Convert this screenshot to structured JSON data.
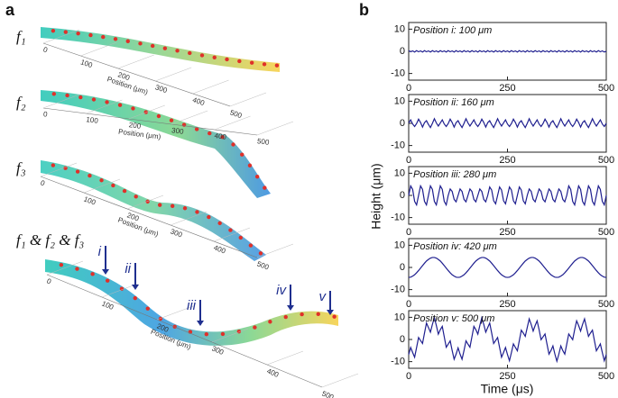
{
  "panel_a": {
    "label": "a",
    "surfaces": [
      {
        "label": "f₁"
      },
      {
        "label": "f₂"
      },
      {
        "label": "f₃"
      },
      {
        "label": "f₁ & f₂ & f₃"
      }
    ],
    "axis_title": "Position (μm)",
    "ticks": [
      0,
      100,
      200,
      300,
      400,
      500
    ],
    "markers": [
      "i",
      "ii",
      "iii",
      "iv",
      "v"
    ]
  },
  "chart_data": {
    "type": "line",
    "label": "b",
    "xlabel": "Time (μs)",
    "ylabel": "Height (μm)",
    "xlim": [
      0,
      500
    ],
    "xticks": [
      0,
      250,
      500
    ],
    "ylim": [
      -13,
      13
    ],
    "yticks": [
      -10,
      0,
      10
    ],
    "color": "#1f1f8f",
    "x": [
      0,
      5,
      10,
      15,
      20,
      25,
      30,
      35,
      40,
      45,
      50,
      55,
      60,
      65,
      70,
      75,
      80,
      85,
      90,
      95,
      100,
      105,
      110,
      115,
      120,
      125,
      130,
      135,
      140,
      145,
      150,
      155,
      160,
      165,
      170,
      175,
      180,
      185,
      190,
      195,
      200,
      205,
      210,
      215,
      220,
      225,
      230,
      235,
      240,
      245,
      250,
      255,
      260,
      265,
      270,
      275,
      280,
      285,
      290,
      295,
      300,
      305,
      310,
      315,
      320,
      325,
      330,
      335,
      340,
      345,
      350,
      355,
      360,
      365,
      370,
      375,
      380,
      385,
      390,
      395,
      400,
      405,
      410,
      415,
      420,
      425,
      430,
      435,
      440,
      445,
      450,
      455,
      460,
      465,
      470,
      475,
      480,
      485,
      490,
      495,
      500
    ],
    "series": [
      {
        "name": "Position i: 100 μm",
        "values": [
          0.3,
          -0.2,
          0.2,
          -0.3,
          0.3,
          -0.2,
          0.2,
          -0.3,
          0.3,
          -0.2,
          0.2,
          -0.3,
          0.3,
          -0.2,
          0.2,
          -0.3,
          0.3,
          -0.2,
          0.2,
          -0.3,
          0.3,
          -0.2,
          0.2,
          -0.3,
          0.3,
          -0.2,
          0.2,
          -0.3,
          0.3,
          -0.2,
          0.2,
          -0.3,
          0.3,
          -0.2,
          0.2,
          -0.3,
          0.3,
          -0.2,
          0.2,
          -0.3,
          0.3,
          -0.2,
          0.2,
          -0.3,
          0.3,
          -0.2,
          0.2,
          -0.3,
          0.3,
          -0.2,
          0.2,
          -0.3,
          0.3,
          -0.2,
          0.2,
          -0.3,
          0.3,
          -0.2,
          0.2,
          -0.3,
          0.3,
          -0.2,
          0.2,
          -0.3,
          0.3,
          -0.2,
          0.2,
          -0.3,
          0.3,
          -0.2,
          0.2,
          -0.3,
          0.3,
          -0.2,
          0.2,
          -0.3,
          0.3,
          -0.2,
          0.2,
          -0.3,
          0.3,
          -0.2,
          0.2,
          -0.3,
          0.3,
          -0.2,
          0.2,
          -0.3,
          0.3,
          -0.2,
          0.2,
          -0.3,
          0.3,
          -0.2,
          0.2,
          -0.3,
          0.3,
          -0.2,
          0.2,
          -0.3,
          0
        ]
      },
      {
        "name": "Position ii: 160 μm",
        "values": [
          0.2,
          1.6,
          -0.3,
          -1.4,
          -0.1,
          1.9,
          0.4,
          -1.7,
          0.3,
          1.2,
          -0.5,
          -1.9,
          0,
          2.1,
          0.2,
          -1.2,
          0.2,
          1.6,
          -0.3,
          -1.4,
          -0.1,
          1.9,
          0.4,
          -1.7,
          0.3,
          1.2,
          -0.5,
          -1.9,
          0,
          2.1,
          0.2,
          -1.2,
          0.2,
          1.6,
          -0.3,
          -1.4,
          -0.1,
          1.9,
          0.4,
          -1.7,
          0.3,
          1.2,
          -0.5,
          -1.9,
          0,
          2.1,
          0.2,
          -1.2,
          0.2,
          1.6,
          -0.3,
          -1.4,
          -0.1,
          1.9,
          0.4,
          -1.7,
          0.3,
          1.2,
          -0.5,
          -1.9,
          0,
          2.1,
          0.2,
          -1.2,
          0.2,
          1.6,
          -0.3,
          -1.4,
          -0.1,
          1.9,
          0.4,
          -1.7,
          0.3,
          1.2,
          -0.5,
          -1.9,
          0,
          2.1,
          0.2,
          -1.2,
          0.2,
          1.6,
          -0.3,
          -1.4,
          -0.1,
          1.9,
          0.4,
          -1.7,
          0.3,
          1.2,
          -0.5,
          -1.9,
          0,
          2.1,
          0.2,
          -1.2,
          0.2,
          1.6,
          -0.3,
          -1.4,
          0
        ]
      },
      {
        "name": "Position iii: 280 μm",
        "values": [
          0,
          4.3,
          2.7,
          -2.7,
          -4.3,
          0,
          4.3,
          2.7,
          -2.7,
          -4.3,
          0,
          4.3,
          2.7,
          -2.7,
          -4.3,
          0,
          4.3,
          2.7,
          -2.7,
          -4.3,
          0,
          2.9,
          1.8,
          -1.8,
          -2.9,
          0,
          2.9,
          1.8,
          -1.8,
          -2.9,
          0,
          2.9,
          1.8,
          -1.8,
          -2.9,
          0,
          2.9,
          1.8,
          -1.8,
          -2.9,
          0,
          3.8,
          2.4,
          -2.4,
          -3.8,
          0,
          3.8,
          2.4,
          -2.4,
          -3.8,
          0,
          3.8,
          2.4,
          -2.4,
          -3.8,
          0,
          3.8,
          2.4,
          -2.4,
          -3.8,
          0,
          2.9,
          1.8,
          -1.8,
          -2.9,
          0,
          2.9,
          1.8,
          -1.8,
          -2.9,
          0,
          2.9,
          1.8,
          -1.8,
          -2.9,
          0,
          2.9,
          1.8,
          -1.8,
          -2.9,
          0,
          4.3,
          2.7,
          -2.7,
          -4.3,
          0,
          4.3,
          2.7,
          -2.7,
          -4.3,
          0,
          4.3,
          2.7,
          -2.7,
          -4.3,
          0,
          4.3,
          2.7,
          -2.7,
          -4.3,
          0
        ]
      },
      {
        "name": "Position iv: 420 μm",
        "values": [
          -4.5,
          -4.4,
          -3.9,
          -3.3,
          -2.4,
          -1.4,
          -0.3,
          0.8,
          1.9,
          2.9,
          3.6,
          4.2,
          4.5,
          4.5,
          4.2,
          3.6,
          2.9,
          1.9,
          0.8,
          -0.3,
          -1.4,
          -2.4,
          -3.3,
          -3.9,
          -4.4,
          -4.5,
          -4.4,
          -3.9,
          -3.3,
          -2.4,
          -1.4,
          -0.3,
          0.8,
          1.9,
          2.9,
          3.6,
          4.2,
          4.5,
          4.5,
          4.2,
          3.6,
          2.9,
          1.9,
          0.8,
          -0.3,
          -1.4,
          -2.4,
          -3.3,
          -3.9,
          -4.4,
          -4.5,
          -4.4,
          -3.9,
          -3.3,
          -2.4,
          -1.4,
          -0.3,
          0.8,
          1.9,
          2.9,
          3.6,
          4.2,
          4.5,
          4.5,
          4.2,
          3.6,
          2.9,
          1.9,
          0.8,
          -0.3,
          -1.4,
          -2.4,
          -3.3,
          -3.9,
          -4.4,
          -4.5,
          -4.4,
          -3.9,
          -3.3,
          -2.4,
          -1.4,
          -0.3,
          0.8,
          1.9,
          2.9,
          3.6,
          4.2,
          4.5,
          4.5,
          4.2,
          3.6,
          2.9,
          1.9,
          0.8,
          -0.3,
          -1.4,
          -2.4,
          -3.3,
          -3.9,
          -4.4,
          -4.5
        ]
      },
      {
        "name": "Position v: 500 μm",
        "values": [
          -6.8,
          -3.6,
          -5.9,
          -8,
          -3.6,
          0.9,
          -0.5,
          -1.8,
          2.9,
          7.4,
          5.4,
          3.3,
          6.8,
          9.8,
          6.3,
          2.4,
          4.4,
          5.9,
          1.2,
          -3.5,
          -2.1,
          -0.6,
          -5,
          -8.9,
          -6.6,
          -3.8,
          -6.6,
          -8.9,
          -5,
          -0.6,
          -2.1,
          -3.5,
          1.2,
          5.9,
          4.4,
          2.4,
          6.3,
          9.8,
          6.8,
          3.3,
          5.4,
          7.4,
          2.9,
          -1.8,
          -0.5,
          0.9,
          -3.6,
          -8,
          -5.9,
          -3.6,
          -6.8,
          -9.6,
          -5.9,
          -2,
          -3.6,
          -5.1,
          -0.5,
          4.2,
          2.9,
          1.4,
          5.4,
          9.3,
          6.8,
          3.8,
          6.3,
          8.4,
          4.4,
          -0.1,
          1.2,
          2.5,
          -2.1,
          -6.6,
          -5,
          -2.9,
          -6.6,
          -9.8,
          -6.6,
          -2.9,
          -5,
          -6.6,
          -2.1,
          2.5,
          1.2,
          -0.1,
          4.4,
          8.4,
          6.3,
          3.8,
          6.8,
          9.3,
          5.4,
          1.4,
          2.9,
          4.2,
          -0.5,
          -5.1,
          -3.6,
          -2,
          -5.9,
          -9.6,
          -6.8
        ]
      }
    ]
  }
}
